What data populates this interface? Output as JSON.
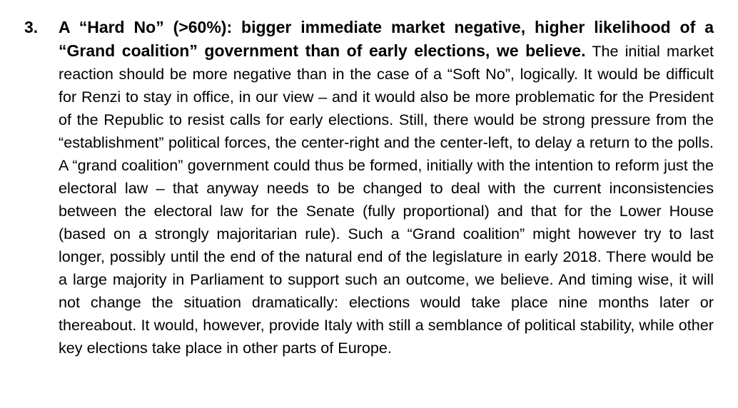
{
  "item": {
    "number": "3.",
    "heading": "A “Hard No” (>60%): bigger immediate market negative, higher likelihood of a “Grand coalition” government than of early elections, we believe.",
    "body": " The initial market reaction should be more negative than in the case of a “Soft No”, logically. It would be difficult for Renzi to stay in office, in our view – and it would also be more problematic for the President of the Republic to resist calls for early elections. Still, there would be strong pressure from the “establishment” political forces, the center-right and the center-left, to delay a return to the polls. A “grand coalition” government could thus be formed, initially with the intention to reform just the electoral law – that anyway needs to be changed to deal with the current inconsistencies between the electoral law for the Senate (fully proportional) and that for the Lower House (based on a strongly majoritarian rule). Such a “Grand coalition” might however try to last longer, possibly until the end of the natural end of the legislature in early 2018. There would be a large majority in Parliament to support such an outcome, we believe. And timing wise, it will not change the situation dramatically: elections would take place nine months later or thereabout. It would, however, provide Italy with still a semblance of political stability, while other key elections take place in other parts of Europe."
  }
}
